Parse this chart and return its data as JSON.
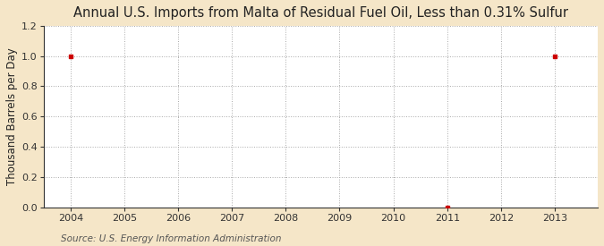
{
  "title": "Annual U.S. Imports from Malta of Residual Fuel Oil, Less than 0.31% Sulfur",
  "ylabel": "Thousand Barrels per Day",
  "source_text": "Source: U.S. Energy Information Administration",
  "data_points": [
    {
      "year": 2004,
      "value": 1.0
    },
    {
      "year": 2011,
      "value": 0.0
    },
    {
      "year": 2013,
      "value": 1.0
    }
  ],
  "xlim": [
    2003.5,
    2013.8
  ],
  "ylim": [
    0.0,
    1.2
  ],
  "yticks": [
    0.0,
    0.2,
    0.4,
    0.6,
    0.8,
    1.0,
    1.2
  ],
  "xticks": [
    2004,
    2005,
    2006,
    2007,
    2008,
    2009,
    2010,
    2011,
    2012,
    2013
  ],
  "figure_bg_color": "#f5e6c8",
  "plot_bg_color": "#ffffff",
  "grid_color": "#aaaaaa",
  "marker_color": "#cc0000",
  "spine_color": "#333333",
  "title_fontsize": 10.5,
  "axis_label_fontsize": 8.5,
  "tick_fontsize": 8,
  "source_fontsize": 7.5
}
